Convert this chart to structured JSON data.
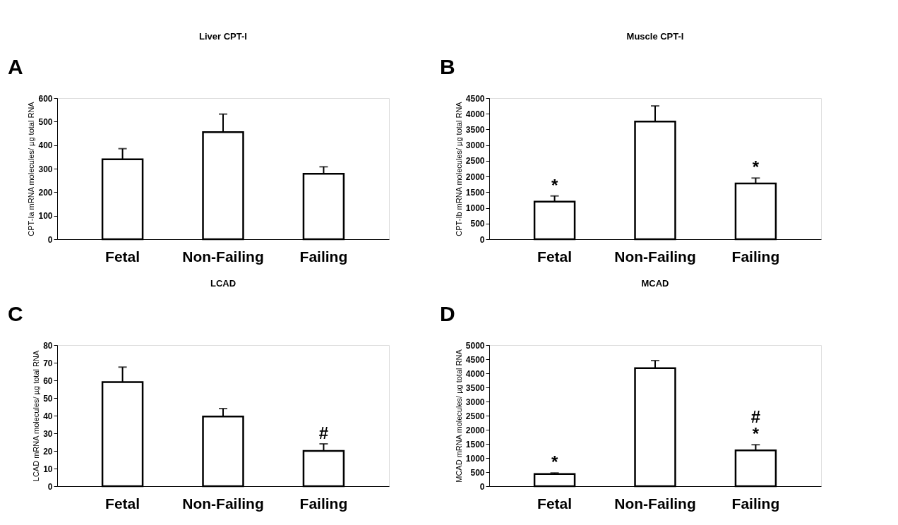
{
  "chart_data": [
    {
      "type": "bar",
      "title": "Liver CPT-I",
      "ylabel": "CPT-Ia mRNA molecules/ µg total RNA",
      "categories": [
        "Fetal",
        "Non-Failing",
        "Failing"
      ],
      "values": [
        340,
        455,
        278
      ],
      "colors": [
        "#ffffff",
        "#ffffff",
        "#ffffff"
      ],
      "errors": [
        [
          340,
          385
        ],
        [
          455,
          532
        ],
        [
          278,
          308
        ]
      ],
      "ylim": [
        0,
        600
      ],
      "yticks": [
        0,
        100,
        200,
        300,
        400,
        500,
        600
      ],
      "grid": false,
      "annotations": [
        "A"
      ]
    },
    {
      "type": "bar",
      "title": "Muscle CPT-I",
      "ylabel": "CPT-Ib mRNA molecules/ µg total RNA",
      "categories": [
        "Fetal",
        "Non-Failing",
        "Failing"
      ],
      "values": [
        1200,
        3750,
        1780
      ],
      "colors": [
        "#ffffff",
        "#ffffff",
        "#ffffff"
      ],
      "errors": [
        [
          1200,
          1380
        ],
        [
          3750,
          4250
        ],
        [
          1780,
          1950
        ]
      ],
      "ylim": [
        0,
        4500
      ],
      "yticks": [
        0,
        500,
        1000,
        1500,
        2000,
        2500,
        3000,
        3500,
        4000,
        4500
      ],
      "grid": false,
      "annotations": [
        "B",
        {
          "text": "*",
          "x": "Fetal",
          "y": 1380
        },
        {
          "text": "*",
          "x": "Failing",
          "y": 1950
        }
      ]
    },
    {
      "type": "bar",
      "title": "LCAD",
      "ylabel": "LCAD mRNA molecules/ µg total RNA",
      "categories": [
        "Fetal",
        "Non-Failing",
        "Failing"
      ],
      "values": [
        59,
        39.5,
        20
      ],
      "colors": [
        "#ffffff",
        "#ffffff",
        "#ffffff"
      ],
      "errors": [
        [
          59,
          67.5
        ],
        [
          39.5,
          44
        ],
        [
          20,
          24
        ]
      ],
      "ylim": [
        0,
        80
      ],
      "yticks": [
        0,
        10,
        20,
        30,
        40,
        50,
        60,
        70,
        80
      ],
      "grid": false,
      "annotations": [
        "C",
        {
          "text": "#",
          "x": "Failing",
          "y": 24
        }
      ]
    },
    {
      "type": "bar",
      "title": "MCAD",
      "ylabel": "MCAD mRNA molecules/ µg total RNA",
      "categories": [
        "Fetal",
        "Non-Failing",
        "Failing"
      ],
      "values": [
        430,
        4180,
        1270
      ],
      "colors": [
        "#ffffff",
        "#ffffff",
        "#ffffff"
      ],
      "errors": [
        [
          430,
          470
        ],
        [
          4180,
          4450
        ],
        [
          1270,
          1470
        ]
      ],
      "ylim": [
        0,
        5000
      ],
      "yticks": [
        0,
        500,
        1000,
        1500,
        2000,
        2500,
        3000,
        3500,
        4000,
        4500,
        5000
      ],
      "grid": false,
      "annotations": [
        "D",
        {
          "text": "*",
          "x": "Fetal",
          "y": 470
        },
        {
          "text": "*",
          "x": "Failing",
          "y": 1470
        },
        {
          "text": "#",
          "x": "Failing",
          "y": 1470
        }
      ]
    }
  ]
}
